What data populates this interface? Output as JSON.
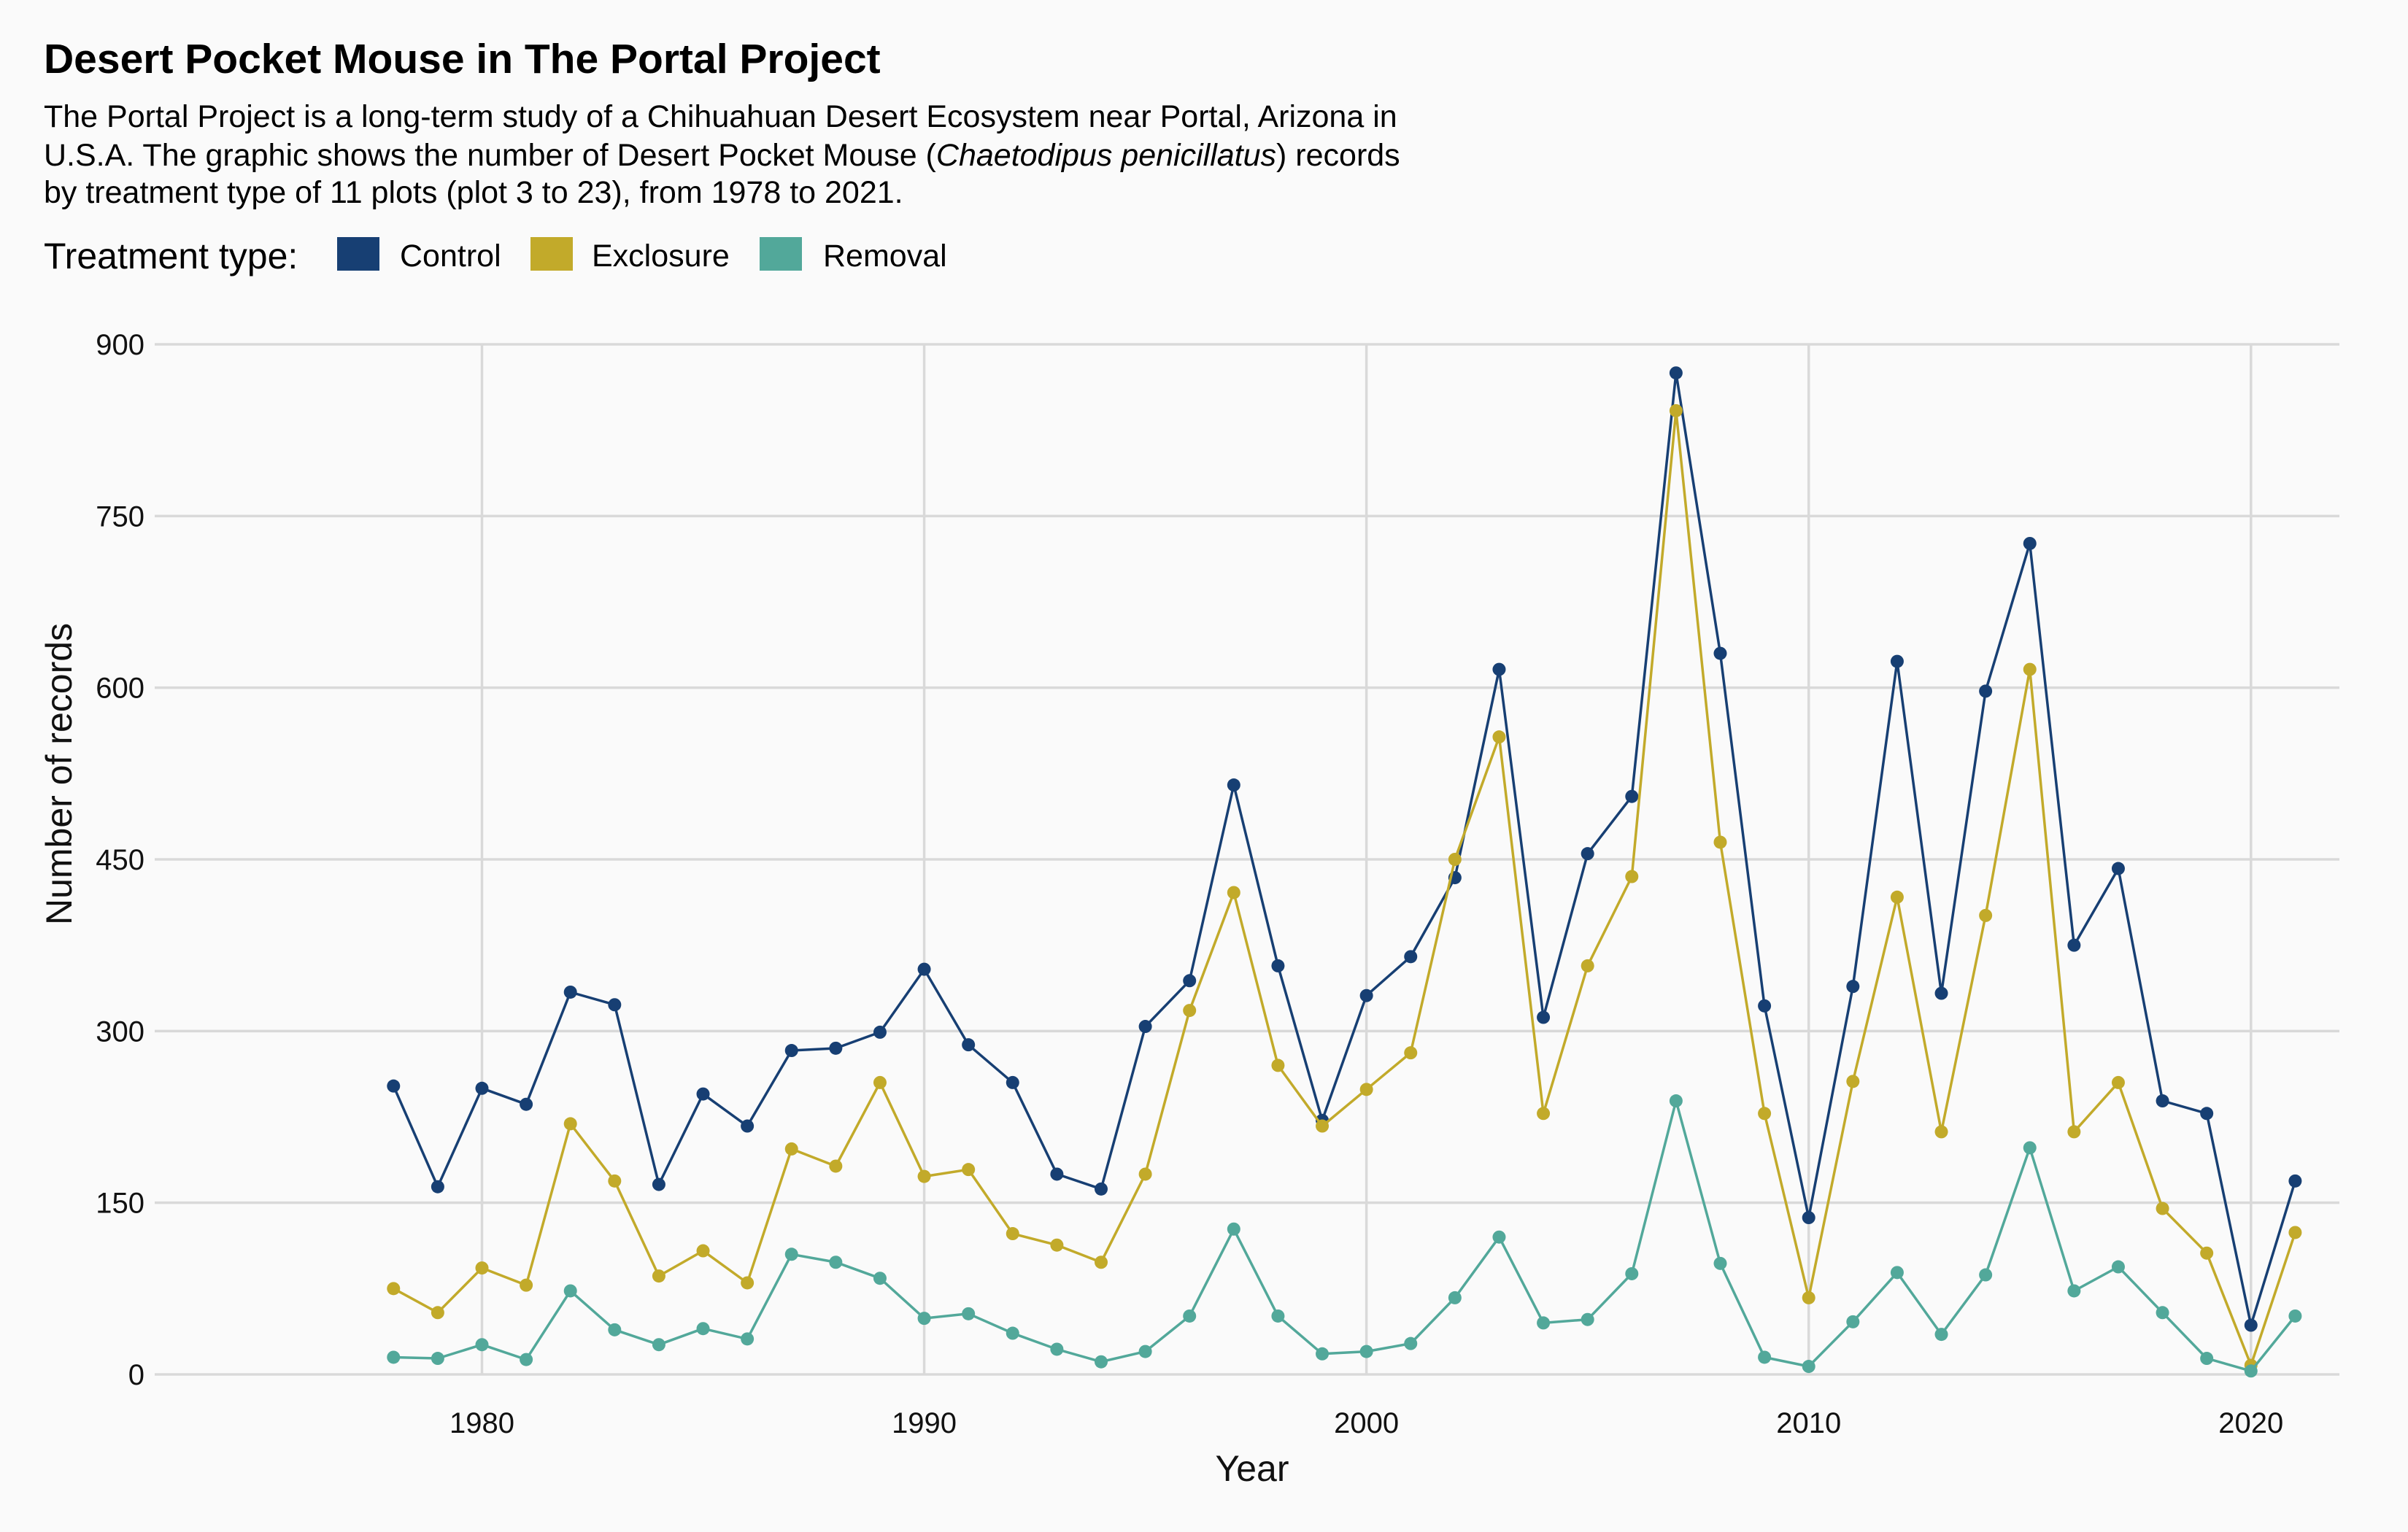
{
  "chart_data": {
    "type": "line",
    "title": "Desert Pocket Mouse in The Portal Project",
    "subtitle_lines": [
      {
        "before": "The Portal Project is a long-term study of a Chihuahuan Desert Ecosystem near Portal, Arizona in",
        "italic": "",
        "after": ""
      },
      {
        "before": "U.S.A. The graphic shows the number of Desert Pocket Mouse (",
        "italic": "Chaetodipus penicillatus",
        "after": ") records"
      },
      {
        "before": "by treatment type of 11 plots (plot 3 to 23), from 1978 to 2021.",
        "italic": "",
        "after": ""
      }
    ],
    "legend_title": "Treatment type:",
    "legend_position": "top-left",
    "xlabel": "Year",
    "ylabel": "Number of records",
    "xlim": [
      1972.6,
      2022.0
    ],
    "ylim": [
      0,
      900
    ],
    "x_ticks": [
      1980,
      1990,
      2000,
      2010,
      2020
    ],
    "y_ticks": [
      0,
      150,
      300,
      450,
      600,
      750,
      900
    ],
    "grid": true,
    "x": [
      1978,
      1979,
      1980,
      1981,
      1982,
      1983,
      1984,
      1985,
      1986,
      1987,
      1988,
      1989,
      1990,
      1991,
      1992,
      1993,
      1994,
      1995,
      1996,
      1997,
      1998,
      1999,
      2000,
      2001,
      2002,
      2003,
      2004,
      2005,
      2006,
      2007,
      2008,
      2009,
      2010,
      2011,
      2012,
      2013,
      2014,
      2015,
      2016,
      2017,
      2018,
      2019,
      2020,
      2021
    ],
    "series": [
      {
        "name": "Control",
        "color": "#173f73",
        "values": [
          252,
          164,
          250,
          236,
          334,
          323,
          166,
          245,
          217,
          283,
          285,
          299,
          354,
          288,
          255,
          175,
          162,
          304,
          344,
          515,
          357,
          222,
          331,
          365,
          434,
          616,
          312,
          455,
          505,
          875,
          630,
          322,
          137,
          339,
          623,
          333,
          597,
          726,
          375,
          442,
          239,
          228,
          43,
          169
        ]
      },
      {
        "name": "Exclosure",
        "color": "#c2aa2a",
        "values": [
          75,
          54,
          93,
          78,
          219,
          169,
          86,
          108,
          80,
          197,
          182,
          255,
          173,
          179,
          123,
          113,
          98,
          175,
          318,
          421,
          270,
          217,
          249,
          281,
          450,
          557,
          228,
          357,
          435,
          842,
          465,
          228,
          67,
          256,
          417,
          212,
          401,
          616,
          212,
          255,
          145,
          106,
          8,
          124
        ]
      },
      {
        "name": "Removal",
        "color": "#52a89a",
        "values": [
          15,
          14,
          26,
          13,
          73,
          39,
          26,
          40,
          31,
          105,
          98,
          84,
          49,
          53,
          36,
          22,
          11,
          20,
          51,
          127,
          51,
          18,
          20,
          27,
          67,
          120,
          45,
          48,
          88,
          239,
          97,
          15,
          7,
          46,
          89,
          35,
          87,
          198,
          73,
          94,
          54,
          14,
          3,
          51
        ]
      }
    ]
  }
}
